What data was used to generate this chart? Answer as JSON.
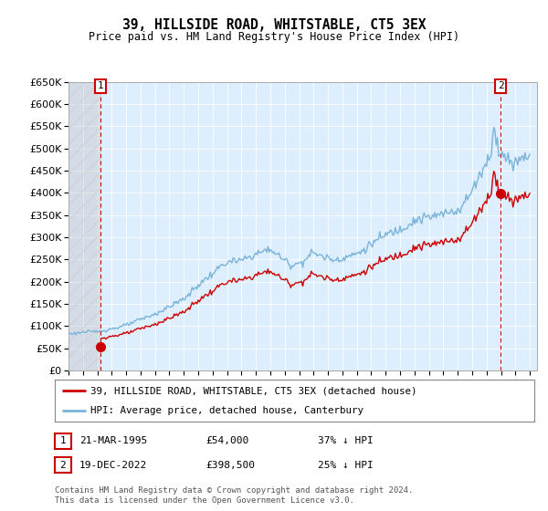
{
  "title": "39, HILLSIDE ROAD, WHITSTABLE, CT5 3EX",
  "subtitle": "Price paid vs. HM Land Registry's House Price Index (HPI)",
  "legend_line1": "39, HILLSIDE ROAD, WHITSTABLE, CT5 3EX (detached house)",
  "legend_line2": "HPI: Average price, detached house, Canterbury",
  "marker1_date": "21-MAR-1995",
  "marker1_price": 54000,
  "marker1_note": "37% ↓ HPI",
  "marker2_date": "19-DEC-2022",
  "marker2_price": 398500,
  "marker2_note": "25% ↓ HPI",
  "footer": "Contains HM Land Registry data © Crown copyright and database right 2024.\nThis data is licensed under the Open Government Licence v3.0.",
  "hpi_color": "#7ab4d8",
  "price_color": "#cc0000",
  "background_color": "#ddeeff",
  "ylim": [
    0,
    650000
  ],
  "yticks": [
    0,
    50000,
    100000,
    150000,
    200000,
    250000,
    300000,
    350000,
    400000,
    450000,
    500000,
    550000,
    600000,
    650000
  ]
}
